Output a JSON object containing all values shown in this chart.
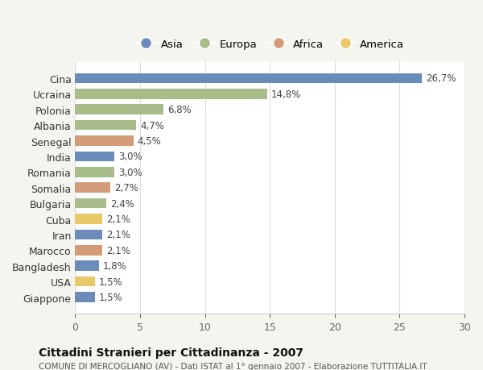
{
  "countries": [
    "Cina",
    "Ucraina",
    "Polonia",
    "Albania",
    "Senegal",
    "India",
    "Romania",
    "Somalia",
    "Bulgaria",
    "Cuba",
    "Iran",
    "Marocco",
    "Bangladesh",
    "USA",
    "Giappone"
  ],
  "values": [
    26.7,
    14.8,
    6.8,
    4.7,
    4.5,
    3.0,
    3.0,
    2.7,
    2.4,
    2.1,
    2.1,
    2.1,
    1.8,
    1.5,
    1.5
  ],
  "labels": [
    "26,7%",
    "14,8%",
    "6,8%",
    "4,7%",
    "4,5%",
    "3,0%",
    "3,0%",
    "2,7%",
    "2,4%",
    "2,1%",
    "2,1%",
    "2,1%",
    "1,8%",
    "1,5%",
    "1,5%"
  ],
  "continents": [
    "Asia",
    "Europa",
    "Europa",
    "Europa",
    "Africa",
    "Asia",
    "Europa",
    "Africa",
    "Europa",
    "America",
    "Asia",
    "Africa",
    "Asia",
    "America",
    "Asia"
  ],
  "colors": {
    "Asia": "#6b8cba",
    "Europa": "#a8bc8a",
    "Africa": "#d49b78",
    "America": "#e8c96a"
  },
  "legend_order": [
    "Asia",
    "Europa",
    "Africa",
    "America"
  ],
  "title": "Cittadini Stranieri per Cittadinanza - 2007",
  "subtitle": "COMUNE DI MERCOGLIANO (AV) - Dati ISTAT al 1° gennaio 2007 - Elaborazione TUTTITALIA.IT",
  "xlim": [
    0,
    30
  ],
  "xticks": [
    0,
    5,
    10,
    15,
    20,
    25,
    30
  ],
  "background_color": "#f5f5f0",
  "bar_background": "#ffffff"
}
